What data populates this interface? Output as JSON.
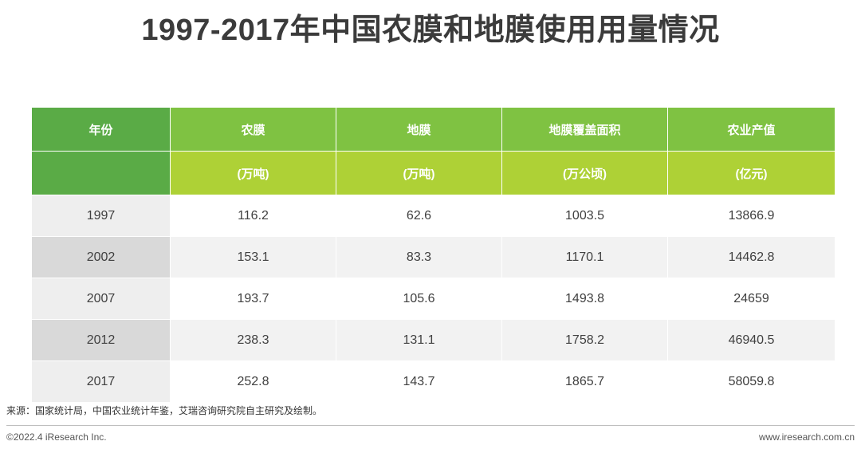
{
  "title": "1997-2017年中国农膜和地膜使用用量情况",
  "colors": {
    "header_dark_green": "#5aab46",
    "header_green": "#7fc242",
    "header_lime": "#aed136",
    "row_gray_light": "#eeeeee",
    "row_gray_dark": "#d9d9d9",
    "text": "#404040"
  },
  "table": {
    "headers": [
      {
        "label": "年份",
        "unit": ""
      },
      {
        "label": "农膜",
        "unit": "(万吨)"
      },
      {
        "label": "地膜",
        "unit": "(万吨)"
      },
      {
        "label": "地膜覆盖面积",
        "unit": "(万公顷)"
      },
      {
        "label": "农业产值",
        "unit": "(亿元)"
      }
    ],
    "rows": [
      [
        "1997",
        "116.2",
        "62.6",
        "1003.5",
        "13866.9"
      ],
      [
        "2002",
        "153.1",
        "83.3",
        "1170.1",
        "14462.8"
      ],
      [
        "2007",
        "193.7",
        "105.6",
        "1493.8",
        "24659"
      ],
      [
        "2012",
        "238.3",
        "131.1",
        "1758.2",
        "46940.5"
      ],
      [
        "2017",
        "252.8",
        "143.7",
        "1865.7",
        "58059.8"
      ]
    ]
  },
  "footer": {
    "source": "来源：国家统计局，中国农业统计年鉴，艾瑞咨询研究院自主研究及绘制。",
    "copyright": "©2022.4 iResearch Inc.",
    "website": "www.iresearch.com.cn"
  }
}
